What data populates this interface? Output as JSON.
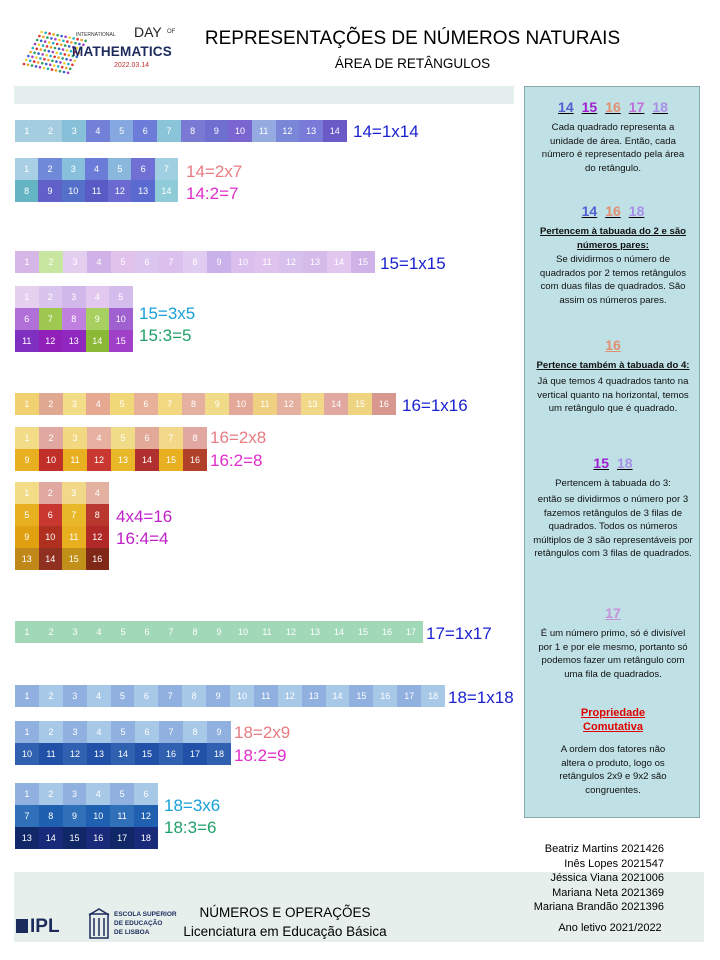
{
  "header": {
    "title": "REPRESENTAÇÕES DE NÚMEROS NATURAIS",
    "subtitle": "ÁREA DE RETÂNGULOS",
    "logo_small": "INTERNATIONAL",
    "logo_day": "DAY",
    "logo_of": "OF",
    "logo_main": "MATHEMATICS",
    "logo_date": "2022.03.14"
  },
  "colors": {
    "c14": "#7279d6",
    "c15": "#b4a0e2",
    "c16": "#e09070",
    "c17": "#c890d8",
    "c18": "#a890e8",
    "eq_blue": "#1a22d0",
    "eq_pink": "#e87c82",
    "eq_magenta": "#e02ccc",
    "eq_cyan": "#18a0d8",
    "eq_green": "#20a068",
    "panel_bg": "#bfe0e5",
    "red": "#e00000"
  },
  "rect_groups": [
    {
      "id": "r14x1",
      "cols": 14,
      "rows": 1,
      "colors": [
        "#a5cde0",
        "#a5cde0",
        "#86c0d8",
        "#7280d8",
        "#86a8e0",
        "#6c7cd8",
        "#8ac4d8",
        "#7a7ad4",
        "#6f6fd0",
        "#7a66d0",
        "#94aae0",
        "#7a86d8",
        "#7a7ad8",
        "#6a5ac8"
      ]
    },
    {
      "id": "r14x2",
      "cols": 7,
      "rows": 2,
      "colors": [
        "#a8cfe4",
        "#6e8ad8",
        "#88c0dc",
        "#6a7cd8",
        "#8ab8dc",
        "#7070d4",
        "#9fcfe0",
        "#64b4c4",
        "#6060c8",
        "#5470c8",
        "#5a5ac4",
        "#6a6ad0",
        "#5a6ad0",
        "#90ccd8"
      ]
    },
    {
      "id": "r15x1",
      "cols": 15,
      "rows": 1,
      "colors": [
        "#d6b6e6",
        "#c8e6a0",
        "#e4cef0",
        "#d0b2e8",
        "#e0c2ea",
        "#dbc6ef",
        "#dbbfed",
        "#e0ccf0",
        "#c9b1ea",
        "#dabeed",
        "#dec4ed",
        "#d8c0ec",
        "#d4bbea",
        "#e1c6ee",
        "#cfb3e8"
      ]
    },
    {
      "id": "r15x3",
      "cols": 5,
      "rows": 3,
      "colors": [
        "#e6d0f0",
        "#d8c4ec",
        "#d0b8ea",
        "#e2c8ef",
        "#d4bced",
        "#b070d8",
        "#9ec850",
        "#c080e0",
        "#a8d060",
        "#a060d0",
        "#8030c0",
        "#9020b8",
        "#9028c0",
        "#8cb838",
        "#a040c8"
      ]
    },
    {
      "id": "r16x1",
      "cols": 16,
      "rows": 1,
      "colors": [
        "#f0d070",
        "#e0a890",
        "#f2dc88",
        "#e6a890",
        "#f0d878",
        "#e8b098",
        "#f2d880",
        "#e6b0a0",
        "#f0dc88",
        "#e4a898",
        "#eed080",
        "#e4b0a0",
        "#f0d888",
        "#e0a8a0",
        "#eed480",
        "#d89890"
      ]
    },
    {
      "id": "r16x2",
      "cols": 8,
      "rows": 2,
      "colors": [
        "#f2dc88",
        "#e0a8a0",
        "#f2d880",
        "#e8b0a0",
        "#f0dc88",
        "#e2a898",
        "#f2d888",
        "#e0a8a0",
        "#e8b020",
        "#c03028",
        "#e8b020",
        "#c83830",
        "#e8b828",
        "#b03030",
        "#e8b020",
        "#b04028"
      ]
    },
    {
      "id": "r16x4",
      "cols": 4,
      "rows": 4,
      "colors": [
        "#f2dc88",
        "#e0a8a0",
        "#f0d888",
        "#e4b0a0",
        "#e8b020",
        "#c83830",
        "#e8b828",
        "#b83830",
        "#e0a010",
        "#b03020",
        "#e8b020",
        "#b02828",
        "#c08818",
        "#903020",
        "#c09018",
        "#802818"
      ]
    },
    {
      "id": "r17x1",
      "cols": 17,
      "rows": 1,
      "colors": [
        "#a0d8b8",
        "#a0d8b8",
        "#a0d8b8",
        "#a0d8b8",
        "#a0d8b8",
        "#a0d8b8",
        "#a0d8b8",
        "#a0d8b8",
        "#a0d8b8",
        "#a0d8b8",
        "#a0d8b8",
        "#a0d8b8",
        "#a0d8b8",
        "#a0d8b8",
        "#a0d8b8",
        "#a0d8b8",
        "#a0d8b8"
      ]
    },
    {
      "id": "r18x1",
      "cols": 18,
      "rows": 1,
      "colors": [
        "#90b0e0",
        "#a8c8e8",
        "#90b0e0",
        "#a8c8e8",
        "#90b0e0",
        "#a8c8e8",
        "#90b0e0",
        "#a8c8e8",
        "#90b0e0",
        "#a8c8e8",
        "#90b0e0",
        "#a8c8e8",
        "#90b0e0",
        "#a8c8e8",
        "#90b0e0",
        "#a8c8e8",
        "#90b0e0",
        "#a8c8e8"
      ]
    },
    {
      "id": "r18x2",
      "cols": 9,
      "rows": 2,
      "colors": [
        "#90b0e0",
        "#a8c8e8",
        "#90b0e0",
        "#a8c8e8",
        "#90b0e0",
        "#a8c8e8",
        "#90b0e0",
        "#a8c8e8",
        "#90b0e0",
        "#3060b0",
        "#2050a8",
        "#3060b0",
        "#2050a8",
        "#3060b0",
        "#2050a8",
        "#3060b0",
        "#2050a8",
        "#3060b0"
      ]
    },
    {
      "id": "r18x3",
      "cols": 6,
      "rows": 3,
      "colors": [
        "#90b0e0",
        "#a8c8e8",
        "#90b0e0",
        "#a8c8e8",
        "#90b0e0",
        "#a8c8e8",
        "#3070b8",
        "#2060b0",
        "#3070b8",
        "#2060b0",
        "#3070b8",
        "#2060b0",
        "#102868",
        "#1a2a7a",
        "#102868",
        "#1a2a7a",
        "#102868",
        "#1a2a7a"
      ]
    }
  ],
  "equations": {
    "e14_1": "14=1x14",
    "e14_2a": "14=2x7",
    "e14_2b": "14:2=7",
    "e15_1": "15=1x15",
    "e15_3a": "15=3x5",
    "e15_3b": "15:3=5",
    "e16_1": "16=1x16",
    "e16_2a": "16=2x8",
    "e16_2b": "16:2=8",
    "e16_4a": "4x4=16",
    "e16_4b": "16:4=4",
    "e17_1": "17=1x17",
    "e18_1": "18=1x18",
    "e18_2a": "18=2x9",
    "e18_2b": "18:2=9",
    "e18_3a": "18=3x6",
    "e18_3b": "18:3=6"
  },
  "panel": {
    "s1_nums": [
      "14",
      "15",
      "16",
      "17",
      "18"
    ],
    "s1_text": "Cada quadrado   representa a unidade de área. Então, cada número é representado pela área do retângulo.",
    "s2_nums": [
      "14",
      "16",
      "18"
    ],
    "s2_head": "Pertencem à tabuada do 2 e são números pares:",
    "s2_text": "Se dividirmos o número de quadrados por 2 temos retângulos com duas filas de quadrados. São assim os números pares.",
    "s3_num": "16",
    "s3_head": "Pertence também à tabuada do 4:",
    "s3_text": "Já que temos 4 quadrados tanto na vertical quanto na horizontal, temos um retângulo que é quadrado.",
    "s4_nums": [
      "15",
      "18"
    ],
    "s4_head": "Pertencem à tabuada do 3:",
    "s4_text": "então se dividirmos o número por 3 fazemos retângulos de 3 filas de quadrados. Todos os números múltiplos de 3 são representáveis por retângulos com 3 filas de quadrados.",
    "s5_num": "17",
    "s5_text": "É um número primo, só é divisível por 1 e por ele mesmo, portanto só podemos fazer um retângulo com uma fila de quadrados.",
    "s6_head": "Propriedade Comutativa",
    "s6_text": "A ordem dos fatores não altera o produto, logo os retângulos 2x9 e 9x2 são congruentes."
  },
  "footer": {
    "names": [
      "Beatriz Martins 2021426",
      "Inês Lopes 2021547",
      "Jéssica Viana 2021006",
      "Mariana Neta 2021369",
      "Mariana Brandão 2021396"
    ],
    "course1": "NÚMEROS E OPERAÇÕES",
    "course2": "Licenciatura em Educação Básica",
    "year": "Ano letivo 2021/2022",
    "ipl": "IPL",
    "eseb": [
      "ESCOLA SUPERIOR",
      "DE EDUCAÇÃO",
      "DE LISBOA"
    ]
  }
}
